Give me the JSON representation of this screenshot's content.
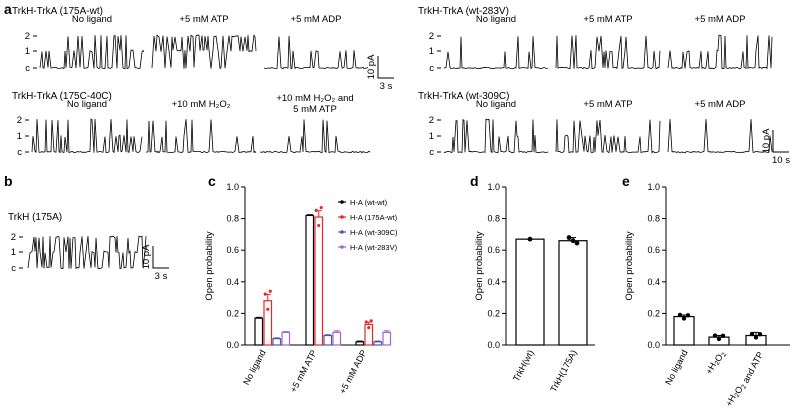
{
  "panel_a": {
    "label": "a",
    "groups": [
      {
        "title": "TrkH-TrkA (175A-wt)",
        "conditions": [
          "No ligand",
          "+5 mM ATP",
          "+5 mM ADP"
        ],
        "levels": [
          "2",
          "1",
          "c"
        ],
        "seeds": [
          11,
          23,
          37
        ],
        "activity": [
          0.35,
          0.85,
          0.2
        ]
      },
      {
        "title": "TrkH-TrkA (wt-283V)",
        "conditions": [
          "No ligand",
          "+5 mM ATP",
          "+5 mM ADP"
        ],
        "levels": [
          "2",
          "1",
          "c"
        ],
        "seeds": [
          41,
          53,
          67
        ],
        "activity": [
          0.18,
          0.3,
          0.15
        ]
      },
      {
        "title": "TrkH-TrkA (175C-40C)",
        "conditions": [
          "No ligand",
          "+10 mM H₂O₂",
          "+10 mM H₂O₂ and\n5 mM ATP"
        ],
        "levels": [
          "2",
          "1",
          "c"
        ],
        "seeds": [
          71,
          83,
          97
        ],
        "activity": [
          0.3,
          0.15,
          0.12
        ]
      },
      {
        "title": "TrkH-TrkA (wt-309C)",
        "conditions": [
          "No ligand",
          "+5 mM ATP",
          "+5 mM ADP"
        ],
        "levels": [
          "2",
          "1",
          "c"
        ],
        "seeds": [
          101,
          113,
          127
        ],
        "activity": [
          0.2,
          0.35,
          0.1
        ]
      }
    ],
    "scalebar_top": {
      "y_label": "10 pA",
      "x_label": "3 s"
    },
    "scalebar_bottom": {
      "y_label": "10 pA",
      "x_label": "10 s"
    }
  },
  "panel_b": {
    "label": "b",
    "title": "TrkH (175A)",
    "levels": [
      "2",
      "1",
      "c"
    ],
    "seed": 139,
    "activity": 0.7,
    "scalebar": {
      "y_label": "10 pA",
      "x_label": "3 s"
    }
  },
  "chart_data": [
    {
      "panel": "c",
      "type": "bar",
      "ylabel": "Open probability",
      "ylim": [
        0,
        1.0
      ],
      "yticks": [
        0,
        0.2,
        0.4,
        0.6,
        0.8,
        1.0
      ],
      "ytick_labels": [
        "0.0",
        "0.2",
        "0.4",
        "0.6",
        "0.8",
        "1.0"
      ],
      "categories": [
        "No ligand",
        "+5 mM ATP",
        "+5 mM ADP"
      ],
      "series": [
        {
          "name": "H-A (wt-wt)",
          "color": "#000000",
          "values": [
            0.17,
            0.82,
            0.02
          ],
          "errors": [
            0.005,
            0.005,
            0.005
          ]
        },
        {
          "name": "H-A (175A-wt)",
          "color": "#e8262b",
          "values": [
            0.28,
            0.81,
            0.13
          ],
          "errors": [
            0.04,
            0.04,
            0.015
          ]
        },
        {
          "name": "H-A (wt-309C)",
          "color": "#4a59a7",
          "values": [
            0.04,
            0.06,
            0.02
          ],
          "errors": [
            0.005,
            0.005,
            0.005
          ]
        },
        {
          "name": "H-A (wt-283V)",
          "color": "#a461d4",
          "values": [
            0.08,
            0.08,
            0.08
          ],
          "errors": [
            0.005,
            0.01,
            0.01
          ]
        }
      ]
    },
    {
      "panel": "d",
      "type": "bar",
      "ylabel": "Open probability",
      "ylim": [
        0,
        1.0
      ],
      "yticks": [
        0,
        0.2,
        0.4,
        0.6,
        0.8,
        1.0
      ],
      "ytick_labels": [
        "0.0",
        "0.2",
        "0.4",
        "0.6",
        "0.8",
        "1.0"
      ],
      "categories": [
        "TrkH(wt)",
        "TrkH(175A)"
      ],
      "values": [
        0.67,
        0.66
      ],
      "errors": [
        0.0,
        0.02
      ]
    },
    {
      "panel": "e",
      "type": "bar",
      "ylabel": "Open probability",
      "ylim": [
        0,
        1.0
      ],
      "yticks": [
        0,
        0.2,
        0.4,
        0.6,
        0.8,
        1.0
      ],
      "ytick_labels": [
        "0.0",
        "0.2",
        "0.4",
        "0.6",
        "0.8",
        "1.0"
      ],
      "categories": [
        "No ligand",
        "+H₂O₂",
        "+H₂O₂ and ATP"
      ],
      "values": [
        0.18,
        0.05,
        0.06
      ],
      "errors": [
        0.01,
        0.01,
        0.02
      ]
    }
  ]
}
